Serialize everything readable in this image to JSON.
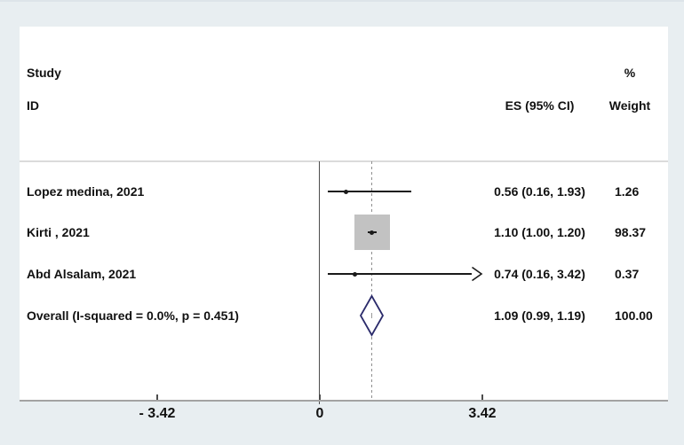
{
  "header": {
    "study_top": "Study",
    "study_bottom": "ID",
    "percent": "%",
    "es_ci": "ES (95% CI)",
    "weight": "Weight"
  },
  "chart_data": {
    "type": "forest",
    "effect_measure": "ES",
    "studies": [
      {
        "label": "Lopez medina, 2021",
        "es": 0.56,
        "ci_low": 0.16,
        "ci_high": 1.93,
        "es_ci_text": "0.56 (0.16, 1.93)",
        "weight": 1.26,
        "weight_text": "1.26",
        "ci_clipped_high": false
      },
      {
        "label": "Kirti , 2021",
        "es": 1.1,
        "ci_low": 1.0,
        "ci_high": 1.2,
        "es_ci_text": "1.10 (1.00, 1.20)",
        "weight": 98.37,
        "weight_text": "98.37",
        "ci_clipped_high": false
      },
      {
        "label": "Abd Alsalam, 2021",
        "es": 0.74,
        "ci_low": 0.16,
        "ci_high": 3.42,
        "es_ci_text": "0.74 (0.16, 3.42)",
        "weight": 0.37,
        "weight_text": "0.37",
        "ci_clipped_high": true
      }
    ],
    "overall": {
      "label": "Overall (I-squared = 0.0%, p = 0.451)",
      "es": 1.09,
      "ci_low": 0.99,
      "ci_high": 1.19,
      "es_ci_text": "1.09 (0.99, 1.19)",
      "weight": 100.0,
      "weight_text": "100.00"
    },
    "x_axis": {
      "xlim": [
        -3.42,
        3.42
      ],
      "ticks": [
        {
          "value": -3.42,
          "label": "- 3.42"
        },
        {
          "value": 0,
          "label": "0"
        },
        {
          "value": 3.42,
          "label": "3.42"
        }
      ],
      "null_line": 0,
      "pooled_line": 1.09,
      "legend_position": "none",
      "grid": false
    }
  },
  "colors": {
    "background": "#e8eef1",
    "panel": "#ffffff",
    "text": "#111111",
    "axis_line": "#a3a3a3",
    "separator": "#dbdbdb",
    "null_line": "#4d4d4d",
    "dashed_line": "#8f8f8f",
    "ci_line": "#1a1a1a",
    "weight_box": "#c2c2c2",
    "diamond": "#2b2b6b"
  }
}
